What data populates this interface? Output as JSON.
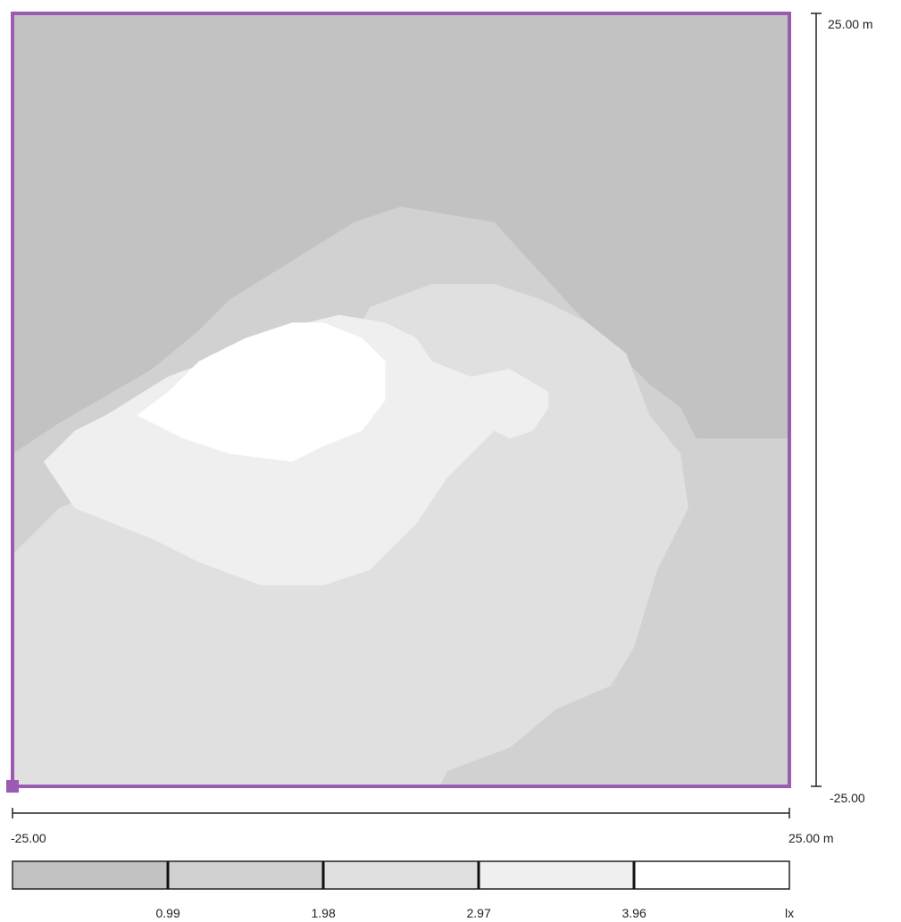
{
  "chart_data": {
    "type": "heatmap",
    "title": "",
    "x_axis": {
      "min": -25.0,
      "max": 25.0,
      "min_label": "-25.00",
      "max_label": "25.00 m"
    },
    "y_axis": {
      "min": -25.0,
      "max": 25.0,
      "min_label": "-25.00",
      "max_label": "25.00 m"
    },
    "unit": "lx",
    "legend": {
      "placement": "bottom",
      "unit_label": "lx",
      "thresholds": [
        "0.99",
        "1.98",
        "2.97",
        "3.96"
      ],
      "colors": [
        "#c2c2c2",
        "#d1d1d1",
        "#e0e0e0",
        "#efefef",
        "#ffffff"
      ]
    },
    "levels": [
      {
        "min": 0,
        "max": 0.99,
        "color": "#c2c2c2"
      },
      {
        "min": 0.99,
        "max": 1.98,
        "color": "#d1d1d1"
      },
      {
        "min": 1.98,
        "max": 2.97,
        "color": "#e0e0e0"
      },
      {
        "min": 2.97,
        "max": 3.96,
        "color": "#efefef"
      },
      {
        "min": 3.96,
        "max": null,
        "color": "#ffffff"
      }
    ],
    "contours": [
      {
        "level_index": 1,
        "color": "#d1d1d1",
        "points": [
          [
            -25,
            -25
          ],
          [
            -25,
            -3.5
          ],
          [
            -22,
            -1.5
          ],
          [
            -16,
            2
          ],
          [
            -13,
            4.5
          ],
          [
            -11,
            6.5
          ],
          [
            -7,
            9
          ],
          [
            -3,
            11.5
          ],
          [
            0,
            12.5
          ],
          [
            6,
            11.5
          ],
          [
            11,
            6
          ],
          [
            14,
            3
          ],
          [
            16,
            1
          ],
          [
            18,
            -0.5
          ],
          [
            19,
            -2.5
          ],
          [
            25,
            -2.5
          ],
          [
            25,
            -25
          ]
        ]
      },
      {
        "level_index": 2,
        "color": "#e0e0e0",
        "points": [
          [
            -25,
            -25
          ],
          [
            -25,
            -14
          ],
          [
            -20,
            -17
          ],
          [
            -15,
            -20
          ],
          [
            -7.5,
            -25
          ]
        ]
      },
      {
        "level_index": 2,
        "color": "#e0e0e0",
        "points": [
          [
            -25,
            -14
          ],
          [
            -25,
            -10
          ],
          [
            -22,
            -7
          ],
          [
            -16,
            -4.5
          ],
          [
            -11,
            -1.5
          ],
          [
            -8,
            1
          ],
          [
            -3,
            4
          ],
          [
            -2,
            6
          ],
          [
            2,
            7.5
          ],
          [
            6,
            7.5
          ],
          [
            9,
            6.5
          ],
          [
            12,
            5
          ],
          [
            14.5,
            3
          ],
          [
            16,
            -1
          ],
          [
            18,
            -3.5
          ],
          [
            18.5,
            -7
          ],
          [
            16.5,
            -11
          ],
          [
            15,
            -16
          ],
          [
            13.5,
            -18.5
          ],
          [
            10,
            -20
          ],
          [
            7,
            -22.5
          ],
          [
            3,
            -24
          ],
          [
            2.5,
            -25
          ],
          [
            -7.5,
            -25
          ],
          [
            -15,
            -20
          ],
          [
            -20,
            -17
          ]
        ]
      },
      {
        "level_index": 3,
        "color": "#efefef",
        "points": [
          [
            -23,
            -4
          ],
          [
            -21,
            -7
          ],
          [
            -16,
            -9
          ],
          [
            -13,
            -10.5
          ],
          [
            -9,
            -12
          ],
          [
            -5,
            -12
          ],
          [
            -2,
            -11
          ],
          [
            1,
            -8
          ],
          [
            3,
            -5
          ],
          [
            5,
            -3
          ],
          [
            6,
            -2
          ],
          [
            7,
            -2.5
          ],
          [
            8.5,
            -2
          ],
          [
            9.5,
            -0.5
          ],
          [
            9.5,
            0.5
          ],
          [
            7,
            2
          ],
          [
            4.5,
            1.5
          ],
          [
            2,
            2.5
          ],
          [
            1,
            4
          ],
          [
            -1,
            5
          ],
          [
            -4,
            5.5
          ],
          [
            -6,
            5
          ],
          [
            -8,
            4
          ],
          [
            -11,
            3
          ],
          [
            -15,
            1.5
          ],
          [
            -19,
            -1
          ],
          [
            -21,
            -2
          ]
        ]
      },
      {
        "level_index": 4,
        "color": "#ffffff",
        "points": [
          [
            -17,
            -1
          ],
          [
            -14,
            -2.5
          ],
          [
            -11,
            -3.5
          ],
          [
            -7,
            -4
          ],
          [
            -5,
            -3
          ],
          [
            -2.5,
            -2
          ],
          [
            -1,
            0
          ],
          [
            -1,
            2.5
          ],
          [
            -2.5,
            4
          ],
          [
            -5,
            5
          ],
          [
            -7,
            5
          ],
          [
            -10,
            4
          ],
          [
            -13,
            2.5
          ],
          [
            -15,
            0.5
          ]
        ]
      }
    ]
  }
}
